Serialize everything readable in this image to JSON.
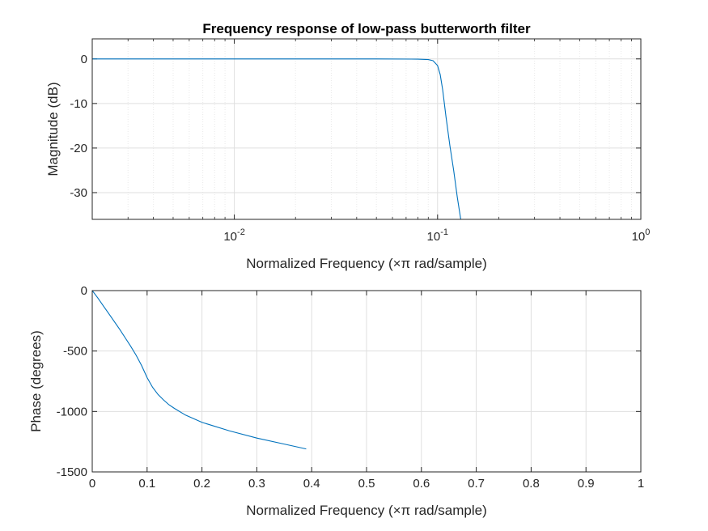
{
  "colors": {
    "line": "#0072BD",
    "axis": "#262626",
    "grid_major": "#dfdfdf",
    "grid_minor": "#e9e9e9",
    "background": "#ffffff"
  },
  "chart_data": [
    {
      "type": "line",
      "title": "Frequency response of low-pass butterworth filter",
      "xlabel": "Normalized Frequency  (×π rad/sample)",
      "ylabel": "Magnitude (dB)",
      "xscale": "log",
      "xlim": [
        0.002,
        1
      ],
      "ylim": [
        -36,
        4.5
      ],
      "xticks": [
        0.01,
        0.1,
        1
      ],
      "xtick_labels": [
        {
          "base": "10",
          "exp": "-2"
        },
        {
          "base": "10",
          "exp": "-1"
        },
        {
          "base": "10",
          "exp": "0"
        }
      ],
      "yticks": [
        0,
        -10,
        -20,
        -30
      ],
      "ytick_labels": [
        "0",
        "-10",
        "-20",
        "-30"
      ],
      "grid": true,
      "minor_grid": true,
      "series": [
        {
          "x": [
            0.002,
            0.01,
            0.05,
            0.08,
            0.09,
            0.095,
            0.1,
            0.103,
            0.106,
            0.11,
            0.115,
            0.12,
            0.125,
            0.13
          ],
          "y": [
            0,
            0,
            0,
            -0.05,
            -0.15,
            -0.4,
            -1.5,
            -3.5,
            -7,
            -13,
            -19.5,
            -25,
            -31,
            -36
          ]
        }
      ]
    },
    {
      "type": "line",
      "title": "",
      "xlabel": "Normalized Frequency  (×π rad/sample)",
      "ylabel": "Phase (degrees)",
      "xscale": "linear",
      "xlim": [
        0,
        1
      ],
      "ylim": [
        -1500,
        0
      ],
      "xticks": [
        0,
        0.1,
        0.2,
        0.3,
        0.4,
        0.5,
        0.6,
        0.7,
        0.8,
        0.9,
        1
      ],
      "xtick_labels": [
        "0",
        "0.1",
        "0.2",
        "0.3",
        "0.4",
        "0.5",
        "0.6",
        "0.7",
        "0.8",
        "0.9",
        "1"
      ],
      "yticks": [
        0,
        -500,
        -1000,
        -1500
      ],
      "ytick_labels": [
        "0",
        "-500",
        "-1000",
        "-1500"
      ],
      "grid": true,
      "series": [
        {
          "x": [
            0,
            0.01,
            0.02,
            0.03,
            0.04,
            0.05,
            0.06,
            0.07,
            0.08,
            0.09,
            0.1,
            0.11,
            0.12,
            0.13,
            0.14,
            0.15,
            0.17,
            0.2,
            0.25,
            0.3,
            0.35,
            0.39
          ],
          "y": [
            0,
            -60,
            -125,
            -190,
            -255,
            -320,
            -390,
            -460,
            -535,
            -620,
            -720,
            -800,
            -860,
            -905,
            -945,
            -975,
            -1030,
            -1090,
            -1160,
            -1220,
            -1270,
            -1310
          ]
        }
      ]
    }
  ]
}
